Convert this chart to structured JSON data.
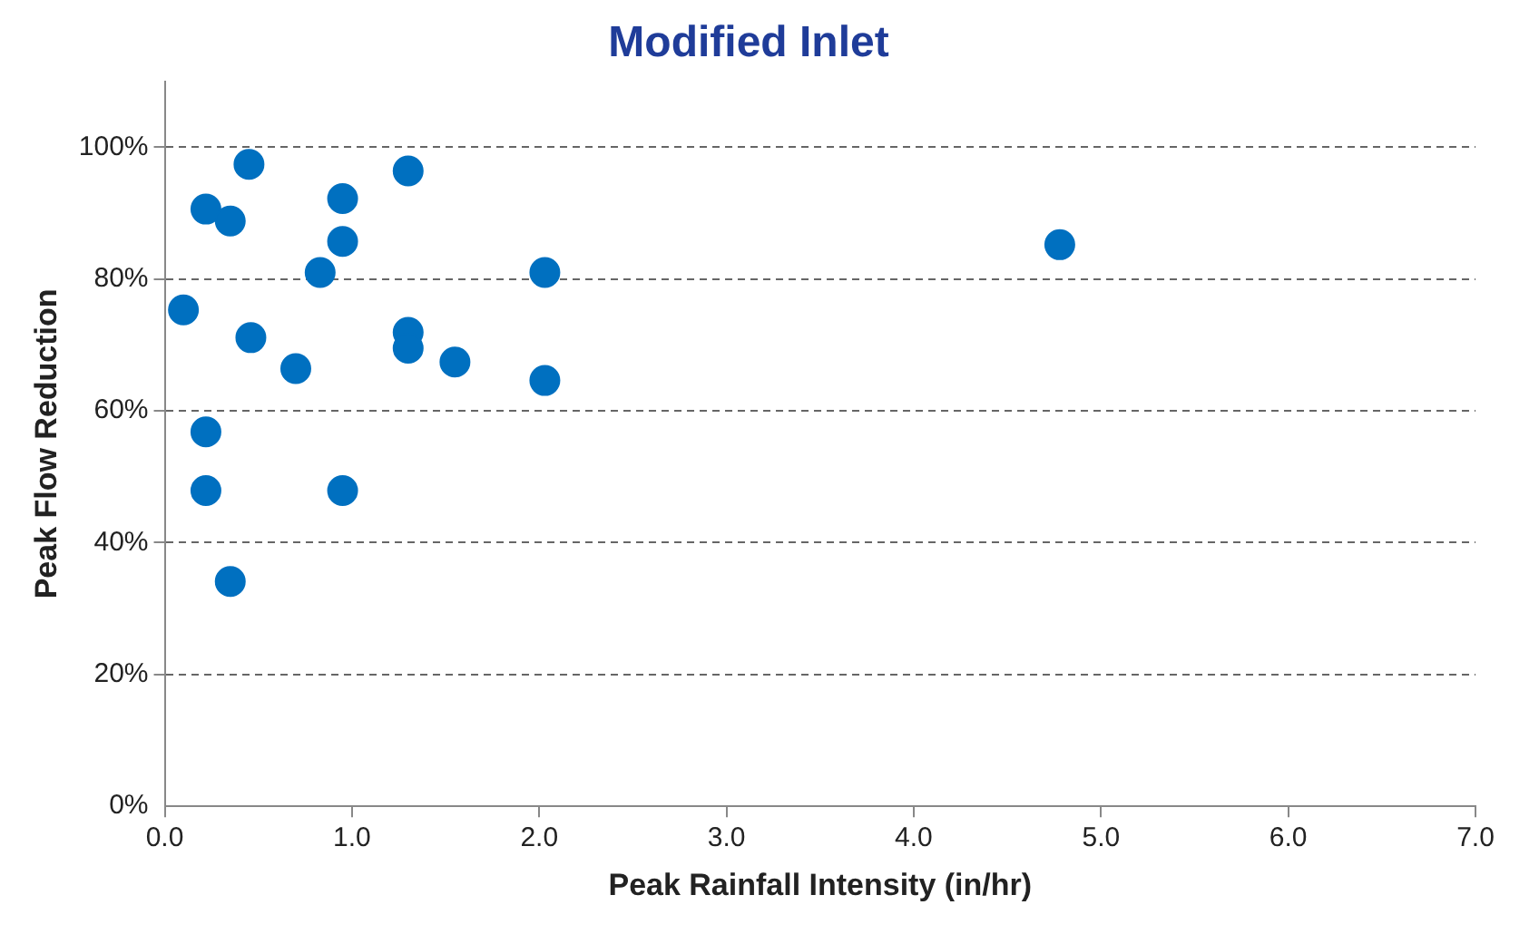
{
  "chart_data": {
    "type": "scatter",
    "title": "Modified Inlet",
    "xlabel": "Peak Rainfall Intensity (in/hr)",
    "ylabel": "Peak Flow Reduction",
    "x": [
      0.45,
      1.3,
      0.22,
      0.35,
      0.95,
      0.95,
      4.78,
      0.83,
      2.03,
      0.1,
      1.3,
      0.46,
      1.3,
      0.7,
      1.55,
      2.03,
      0.22,
      0.22,
      0.95,
      0.35
    ],
    "series": [
      {
        "color": "#0070c0",
        "values": [
          97.4,
          96.4,
          90.6,
          88.8,
          92.2,
          85.7,
          85.2,
          81.0,
          81.0,
          75.3,
          71.9,
          71.1,
          69.5,
          66.4,
          67.4,
          64.6,
          56.8,
          47.9,
          47.9,
          34.1
        ]
      }
    ],
    "xlim": [
      0,
      7
    ],
    "xticks": [
      {
        "value": 0,
        "label": "0.0"
      },
      {
        "value": 1,
        "label": "1.0"
      },
      {
        "value": 2,
        "label": "2.0"
      },
      {
        "value": 3,
        "label": "3.0"
      },
      {
        "value": 4,
        "label": "4.0"
      },
      {
        "value": 5,
        "label": "5.0"
      },
      {
        "value": 6,
        "label": "6.0"
      },
      {
        "value": 7,
        "label": "7.0"
      }
    ],
    "ylim": [
      0,
      110
    ],
    "yticks": [
      {
        "value": 0,
        "label": "0%"
      },
      {
        "value": 20,
        "label": "20%"
      },
      {
        "value": 40,
        "label": "40%"
      },
      {
        "value": 60,
        "label": "60%"
      },
      {
        "value": 80,
        "label": "80%"
      },
      {
        "value": 100,
        "label": "100%"
      }
    ],
    "grid": "y",
    "legend": false,
    "marker": "circle"
  }
}
